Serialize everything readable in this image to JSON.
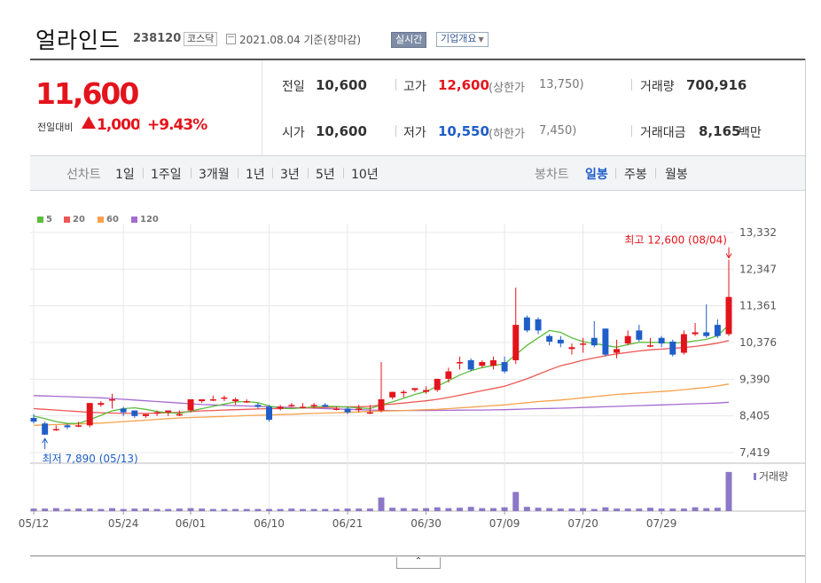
{
  "header": {
    "company_name": "얼라인드",
    "stock_code": "238120",
    "market": "코스닥",
    "date_text": "2021.08.04 기준(장마감)",
    "realtime_label": "실시간",
    "company_info_label": "기업개요",
    "company_info_icon": "chevron-down-icon"
  },
  "summary": {
    "current_price": "11,600",
    "change_label": "전일대비",
    "change_amount": "1,000",
    "change_percent": "+9.43%",
    "up_color": "#e4141c",
    "down_color": "#1f5ec9",
    "prev_close_label": "전일",
    "prev_close": "10,600",
    "open_label": "시가",
    "open": "10,600",
    "high_label": "고가",
    "high": "12,600",
    "upper_limit_label": "(상한가",
    "upper_limit": "13,750)",
    "low_label": "저가",
    "low": "10,550",
    "lower_limit_label": "(하한가",
    "lower_limit": "7,450)",
    "volume_label": "거래량",
    "volume": "700,916",
    "amount_label": "거래대금",
    "amount": "8,165",
    "amount_unit": "백만"
  },
  "period_bar": {
    "line_chart_label": "선차트",
    "line_periods": [
      "1일",
      "1주일",
      "3개월",
      "1년",
      "3년",
      "5년",
      "10년"
    ],
    "candle_chart_label": "봉차트",
    "candle_periods": [
      "일봉",
      "주봉",
      "월봉"
    ],
    "selected_candle": "일봉"
  },
  "chart_data": {
    "type": "candlestick",
    "legend": [
      {
        "name": "5",
        "color": "#5cbd3c"
      },
      {
        "name": "20",
        "color": "#ee5753"
      },
      {
        "name": "60",
        "color": "#f7a24b"
      },
      {
        "name": "120",
        "color": "#a66bd1"
      }
    ],
    "y_ticks": [
      "13,332",
      "12,347",
      "11,361",
      "10,376",
      "9,390",
      "8,405",
      "7,419"
    ],
    "y_tick_values": [
      13332,
      12347,
      11361,
      10376,
      9390,
      8405,
      7419
    ],
    "ylim": [
      7419,
      13332
    ],
    "x_tick_labels": [
      "05/12",
      "05/24",
      "06/01",
      "06/10",
      "06/21",
      "06/30",
      "07/09",
      "07/20",
      "07/29"
    ],
    "x_tick_indices": [
      0,
      8,
      14,
      21,
      28,
      35,
      42,
      49,
      56
    ],
    "candles": [
      [
        8350,
        8450,
        8250,
        8200
      ],
      [
        8200,
        8250,
        7900,
        7890
      ],
      [
        8050,
        8150,
        8050,
        8000
      ],
      [
        8150,
        8200,
        8100,
        8050
      ],
      [
        8150,
        8250,
        8150,
        8100
      ],
      [
        8150,
        8750,
        8750,
        8100
      ],
      [
        8700,
        8800,
        8750,
        8650
      ],
      [
        8850,
        9000,
        8850,
        8600
      ],
      [
        8600,
        8650,
        8500,
        8400
      ],
      [
        8550,
        8550,
        8400,
        8350
      ],
      [
        8400,
        8450,
        8450,
        8350
      ],
      [
        8500,
        8550,
        8500,
        8400
      ],
      [
        8500,
        8550,
        8550,
        8400
      ],
      [
        8450,
        8550,
        8450,
        8400
      ],
      [
        8550,
        8850,
        8850,
        8500
      ],
      [
        8800,
        8850,
        8850,
        8750
      ],
      [
        8850,
        8950,
        8850,
        8800
      ],
      [
        8900,
        8950,
        8900,
        8800
      ],
      [
        8800,
        8900,
        8850,
        8700
      ],
      [
        8800,
        8850,
        8800,
        8750
      ],
      [
        8700,
        8750,
        8650,
        8600
      ],
      [
        8650,
        8700,
        8300,
        8250
      ],
      [
        8600,
        8700,
        8650,
        8550
      ],
      [
        8700,
        8750,
        8700,
        8650
      ],
      [
        8650,
        8750,
        8650,
        8600
      ],
      [
        8700,
        8750,
        8700,
        8600
      ],
      [
        8700,
        8750,
        8650,
        8650
      ],
      [
        8600,
        8650,
        8600,
        8550
      ],
      [
        8600,
        8650,
        8500,
        8450
      ],
      [
        8600,
        8700,
        8600,
        8500
      ],
      [
        8500,
        8700,
        8500,
        8450
      ],
      [
        8550,
        9850,
        8850,
        8500
      ],
      [
        8900,
        9050,
        9050,
        8850
      ],
      [
        9050,
        9100,
        9050,
        8900
      ],
      [
        9100,
        9150,
        9150,
        9050
      ],
      [
        9050,
        9200,
        9100,
        9000
      ],
      [
        9100,
        9400,
        9400,
        9050
      ],
      [
        9400,
        9700,
        9600,
        9300
      ],
      [
        9850,
        10000,
        9850,
        9650
      ],
      [
        9900,
        9950,
        9650,
        9600
      ],
      [
        9750,
        9900,
        9850,
        9700
      ],
      [
        9750,
        10000,
        9900,
        9650
      ],
      [
        9850,
        10000,
        9600,
        9550
      ],
      [
        9900,
        11850,
        10850,
        9800
      ],
      [
        11050,
        11100,
        10700,
        10650
      ],
      [
        11000,
        11050,
        10700,
        10600
      ],
      [
        10550,
        10600,
        10400,
        10300
      ],
      [
        10450,
        10550,
        10350,
        10250
      ],
      [
        10200,
        10350,
        10250,
        10050
      ],
      [
        10350,
        10500,
        10350,
        10100
      ],
      [
        10500,
        10950,
        10300,
        10250
      ],
      [
        10750,
        10750,
        10050,
        10000
      ],
      [
        10100,
        10450,
        10200,
        9950
      ],
      [
        10350,
        10700,
        10550,
        10300
      ],
      [
        10700,
        10850,
        10450,
        10400
      ],
      [
        10300,
        10500,
        10300,
        10250
      ],
      [
        10500,
        10550,
        10350,
        10250
      ],
      [
        10400,
        10450,
        10050,
        10000
      ],
      [
        10100,
        10700,
        10600,
        10050
      ],
      [
        10600,
        10900,
        10650,
        10550
      ],
      [
        10650,
        11400,
        10550,
        10500
      ],
      [
        10850,
        11000,
        10550,
        10500
      ],
      [
        10600,
        12600,
        11600,
        10550
      ]
    ],
    "moving_averages": {
      "5": [
        8400,
        8330,
        8250,
        8200,
        8200,
        8300,
        8420,
        8540,
        8600,
        8620,
        8580,
        8520,
        8490,
        8470,
        8530,
        8600,
        8660,
        8720,
        8780,
        8790,
        8760,
        8670,
        8610,
        8600,
        8620,
        8650,
        8660,
        8660,
        8640,
        8620,
        8600,
        8700,
        8780,
        8880,
        8980,
        9060,
        9200,
        9350,
        9500,
        9620,
        9700,
        9760,
        9800,
        10050,
        10300,
        10500,
        10700,
        10650,
        10500,
        10400,
        10350,
        10300,
        10250,
        10320,
        10380,
        10380,
        10380,
        10360,
        10380,
        10420,
        10460,
        10560,
        10850
      ],
      "20": [
        8600,
        8580,
        8560,
        8540,
        8520,
        8500,
        8490,
        8480,
        8470,
        8470,
        8470,
        8480,
        8490,
        8500,
        8520,
        8540,
        8550,
        8560,
        8570,
        8580,
        8590,
        8600,
        8600,
        8610,
        8620,
        8620,
        8630,
        8640,
        8650,
        8650,
        8660,
        8700,
        8720,
        8750,
        8780,
        8810,
        8850,
        8900,
        8960,
        9020,
        9080,
        9140,
        9200,
        9300,
        9400,
        9520,
        9640,
        9750,
        9820,
        9900,
        9960,
        10020,
        10070,
        10110,
        10150,
        10180,
        10200,
        10220,
        10240,
        10270,
        10310,
        10360,
        10430
      ],
      "60": [
        8150,
        8160,
        8170,
        8180,
        8190,
        8200,
        8210,
        8230,
        8250,
        8270,
        8290,
        8310,
        8330,
        8350,
        8360,
        8370,
        8380,
        8390,
        8400,
        8410,
        8420,
        8430,
        8440,
        8450,
        8460,
        8470,
        8480,
        8490,
        8500,
        8510,
        8520,
        8530,
        8540,
        8550,
        8560,
        8570,
        8580,
        8600,
        8620,
        8640,
        8660,
        8680,
        8700,
        8730,
        8760,
        8790,
        8810,
        8830,
        8860,
        8890,
        8920,
        8950,
        8980,
        9000,
        9020,
        9040,
        9060,
        9080,
        9110,
        9140,
        9170,
        9210,
        9260
      ],
      "120": [
        8950,
        8940,
        8930,
        8920,
        8910,
        8900,
        8890,
        8870,
        8850,
        8830,
        8810,
        8790,
        8770,
        8750,
        8730,
        8710,
        8700,
        8690,
        8680,
        8670,
        8660,
        8650,
        8640,
        8630,
        8620,
        8610,
        8600,
        8590,
        8580,
        8570,
        8560,
        8555,
        8550,
        8550,
        8550,
        8550,
        8552,
        8555,
        8558,
        8560,
        8562,
        8565,
        8570,
        8580,
        8590,
        8600,
        8605,
        8610,
        8620,
        8630,
        8640,
        8650,
        8660,
        8670,
        8680,
        8690,
        8700,
        8710,
        8720,
        8730,
        8740,
        8750,
        8770
      ]
    },
    "volume_label": "거래량",
    "volumes": [
      6,
      6,
      7,
      5,
      6,
      6,
      5,
      7,
      5,
      6,
      6,
      5,
      5,
      6,
      7,
      6,
      5,
      5,
      5,
      5,
      5,
      5,
      5,
      6,
      5,
      5,
      5,
      5,
      6,
      6,
      6,
      32,
      8,
      7,
      6,
      7,
      9,
      7,
      8,
      10,
      7,
      7,
      9,
      45,
      10,
      8,
      7,
      6,
      6,
      7,
      5,
      9,
      6,
      6,
      6,
      8,
      6,
      6,
      6,
      9,
      7,
      8,
      92
    ],
    "volume_max": 100,
    "max_annotation": "최고 12,600 (08/04)",
    "min_annotation": "최저 7,890 (05/13)"
  },
  "footer": {
    "collapse_icon": "chevron-up-icon",
    "collapse_label": "⌃"
  }
}
